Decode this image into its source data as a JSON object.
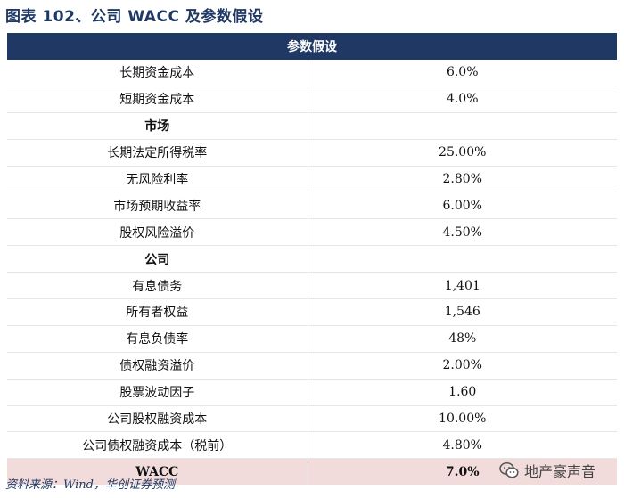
{
  "title": "图表 102、公司 WACC 及参数假设",
  "header": "参数假设",
  "rows": [
    {
      "label": "长期资金成本",
      "value": "6.0%",
      "type": "item"
    },
    {
      "label": "短期资金成本",
      "value": "4.0%",
      "type": "item"
    },
    {
      "label": "市场",
      "value": "",
      "type": "section"
    },
    {
      "label": "长期法定所得税率",
      "value": "25.00%",
      "type": "item"
    },
    {
      "label": "无风险利率",
      "value": "2.80%",
      "type": "item"
    },
    {
      "label": "市场预期收益率",
      "value": "6.00%",
      "type": "item"
    },
    {
      "label": "股权风险溢价",
      "value": "4.50%",
      "type": "item"
    },
    {
      "label": "公司",
      "value": "",
      "type": "section"
    },
    {
      "label": "有息债务",
      "value": "1,401",
      "type": "item"
    },
    {
      "label": "所有者权益",
      "value": "1,546",
      "type": "item"
    },
    {
      "label": "有息负债率",
      "value": "48%",
      "type": "item"
    },
    {
      "label": "债权融资溢价",
      "value": "2.00%",
      "type": "item"
    },
    {
      "label": "股票波动因子",
      "value": "1.60",
      "type": "item"
    },
    {
      "label": "公司股权融资成本",
      "value": "10.00%",
      "type": "item"
    },
    {
      "label": "公司债权融资成本（税前）",
      "value": "4.80%",
      "type": "item"
    },
    {
      "label": "WACC",
      "value": "7.0%",
      "type": "total"
    }
  ],
  "source": "资料来源：Wind，华创证券预测",
  "watermark": "地产豪声音",
  "colors": {
    "header_bg": "#1f3864",
    "total_bg": "#f2dcdb",
    "title": "#1f3864"
  }
}
